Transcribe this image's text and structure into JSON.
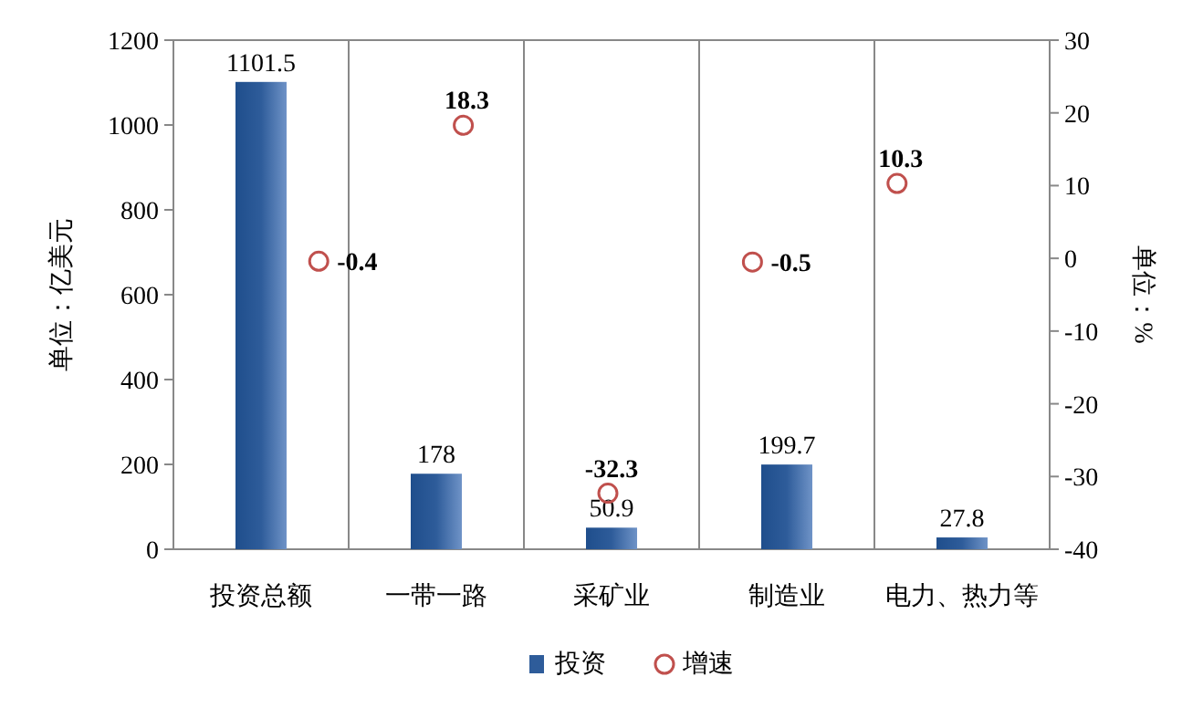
{
  "chart_data": {
    "type": "bar",
    "ylabel": "单位：亿美元",
    "y2label": "单位：%",
    "categories": [
      "投资总额",
      "一带一路",
      "采矿业",
      "制造业",
      "电力、热力等"
    ],
    "series": [
      {
        "name": "投资",
        "color": "#2e5c9a",
        "values": [
          1101.5,
          178,
          50.9,
          199.7,
          27.8
        ]
      },
      {
        "name": "增速",
        "type": "scatter",
        "axis": "y2",
        "color": "#c0504d",
        "marker": "circle",
        "values": [
          -0.4,
          18.3,
          -32.3,
          -0.5,
          10.3
        ]
      }
    ],
    "ylim": [
      0,
      1200
    ],
    "yticks": [
      0,
      200,
      400,
      600,
      800,
      1000,
      1200
    ],
    "y2lim": [
      -40,
      30
    ],
    "y2ticks": [
      -40,
      -30,
      -20,
      -10,
      0,
      10,
      20,
      30
    ],
    "grid": "x",
    "legend": "bottom",
    "data_labels": true
  }
}
